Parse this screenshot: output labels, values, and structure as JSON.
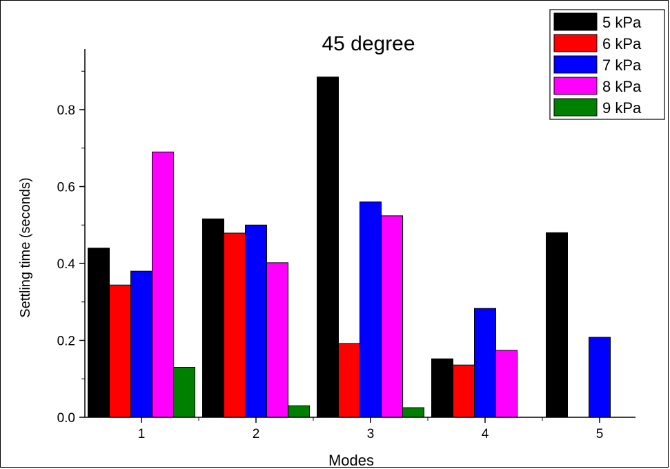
{
  "chart_data": {
    "type": "bar",
    "title": "45 degree",
    "xlabel": "Modes",
    "ylabel": "Settling time (seconds)",
    "categories": [
      "1",
      "2",
      "3",
      "4",
      "5"
    ],
    "ylim": [
      0,
      0.95
    ],
    "yticks": [
      0.0,
      0.2,
      0.4,
      0.6,
      0.8
    ],
    "ytick_labels": [
      "0.0",
      "0.2",
      "0.4",
      "0.6",
      "0.8"
    ],
    "grid": false,
    "legend_position": "top-right",
    "series": [
      {
        "name": "5 kPa",
        "color": "#000000",
        "values": [
          0.44,
          0.516,
          0.885,
          0.152,
          0.48
        ]
      },
      {
        "name": "6 kPa",
        "color": "#ff0000",
        "values": [
          0.344,
          0.479,
          0.192,
          0.136,
          null
        ]
      },
      {
        "name": "7 kPa",
        "color": "#0000ff",
        "values": [
          0.38,
          0.5,
          0.56,
          0.283,
          0.208
        ]
      },
      {
        "name": "8 kPa",
        "color": "#ff00ff",
        "values": [
          0.69,
          0.402,
          0.524,
          0.174,
          null
        ]
      },
      {
        "name": "9 kPa",
        "color": "#008000",
        "values": [
          0.13,
          0.03,
          0.025,
          null,
          null
        ]
      }
    ]
  }
}
